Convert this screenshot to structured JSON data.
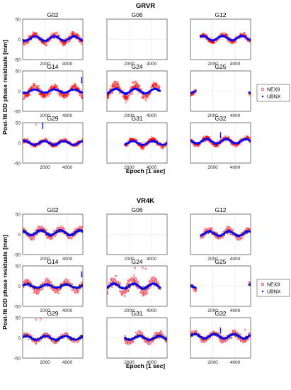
{
  "colors": {
    "nex9": "#ff0000",
    "ubnx": "#0000ff",
    "nex9_fill_vr4k": "#ffd6f5",
    "ubnx_dark_vr4k": "#1a1a2e",
    "axis": "#262626",
    "grid": "#e6e6e6"
  },
  "chart_data": [
    {
      "type": "scatter",
      "title": "GRVR",
      "ylabel": "Post-fit DD phase residuals [mm]",
      "xlabel": "Epoch [1 sec]",
      "legend": {
        "placement": "right",
        "entries": [
          "NEX9",
          "UBNX"
        ]
      },
      "grid": true,
      "xlim": [
        0,
        5400
      ],
      "ylim": [
        -50,
        50
      ],
      "xticks": [
        "2000",
        "4000"
      ],
      "yticks": [
        "-50",
        "0",
        "50"
      ],
      "panels": [
        {
          "name": "G02",
          "x_range": [
            0,
            5400
          ],
          "nex9_amp": 22,
          "ubnx_amp": 9,
          "offset": 2,
          "outliers": []
        },
        {
          "name": "G06",
          "x_range": [],
          "nex9_amp": 0,
          "ubnx_amp": 0,
          "offset": 0,
          "outliers": []
        },
        {
          "name": "G12",
          "x_range": [
            900,
            5400
          ],
          "nex9_amp": 18,
          "ubnx_amp": 9,
          "offset": 3,
          "outliers": []
        },
        {
          "name": "G14",
          "x_range": [
            0,
            5400
          ],
          "nex9_amp": 24,
          "ubnx_amp": 7,
          "offset": 0,
          "outliers": [
            [
              5300,
              33
            ]
          ]
        },
        {
          "name": "G24",
          "x_range": [
            0,
            4800
          ],
          "nex9_amp": 32,
          "ubnx_amp": 10,
          "offset": 0,
          "outliers": []
        },
        {
          "name": "G25",
          "x_range": [
            0,
            500
          ],
          "x_range2": [
            5250,
            5400
          ],
          "nex9_amp": 16,
          "ubnx_amp": 7,
          "offset": 0,
          "outliers": []
        },
        {
          "name": "G29",
          "x_range": [
            0,
            5400
          ],
          "nex9_amp": 13,
          "ubnx_amp": 8,
          "offset": 0,
          "outliers": [
            [
              1200,
              45
            ],
            [
              1800,
              48
            ]
          ]
        },
        {
          "name": "G31",
          "x_range": [
            1600,
            5400
          ],
          "nex9_amp": 19,
          "ubnx_amp": 8,
          "offset": 0,
          "outliers": []
        },
        {
          "name": "G32",
          "x_range": [
            0,
            5400
          ],
          "nex9_amp": 18,
          "ubnx_amp": 9,
          "offset": 4,
          "outliers": [
            [
              2700,
              25
            ]
          ]
        }
      ]
    },
    {
      "type": "scatter",
      "title": "VR4K",
      "ylabel": "Post-fit DD phase residuals [mm]",
      "xlabel": "Epoch [1 sec]",
      "legend": {
        "placement": "right",
        "entries": [
          "NEX9",
          "UBNX"
        ]
      },
      "grid": true,
      "xlim": [
        0,
        5400
      ],
      "ylim": [
        -50,
        50
      ],
      "xticks": [
        "2000",
        "4000"
      ],
      "yticks": [
        "-50",
        "0",
        "50"
      ],
      "panels": [
        {
          "name": "G02",
          "x_range": [
            0,
            5400
          ],
          "nex9_amp": 22,
          "ubnx_amp": 10,
          "offset": 4,
          "outliers": []
        },
        {
          "name": "G06",
          "x_range": [],
          "nex9_amp": 0,
          "ubnx_amp": 0,
          "offset": 0,
          "outliers": []
        },
        {
          "name": "G12",
          "x_range": [
            900,
            5400
          ],
          "nex9_amp": 20,
          "ubnx_amp": 9,
          "offset": 2,
          "outliers": []
        },
        {
          "name": "G14",
          "x_range": [
            0,
            5400
          ],
          "nex9_amp": 24,
          "ubnx_amp": 7,
          "offset": 0,
          "outliers": [
            [
              5300,
              35
            ]
          ]
        },
        {
          "name": "G24",
          "x_range": [
            0,
            4800
          ],
          "nex9_amp": 34,
          "ubnx_amp": 10,
          "offset": 0,
          "outliers": [
            [
              2500,
              45
            ],
            [
              3200,
              46
            ],
            [
              3500,
              43
            ]
          ]
        },
        {
          "name": "G25",
          "x_range": [
            0,
            500
          ],
          "x_range2": [
            5250,
            5400
          ],
          "nex9_amp": 16,
          "ubnx_amp": 7,
          "offset": 0,
          "outliers": []
        },
        {
          "name": "G29",
          "x_range": [
            0,
            5400
          ],
          "nex9_amp": 16,
          "ubnx_amp": 8,
          "offset": 0,
          "outliers": [
            [
              1200,
              45
            ],
            [
              1600,
              46
            ]
          ]
        },
        {
          "name": "G31",
          "x_range": [
            1600,
            5400
          ],
          "nex9_amp": 22,
          "ubnx_amp": 8,
          "offset": 0,
          "outliers": []
        },
        {
          "name": "G32",
          "x_range": [
            0,
            5400
          ],
          "nex9_amp": 22,
          "ubnx_amp": 9,
          "offset": 4,
          "outliers": [
            [
              2700,
              24
            ],
            [
              4900,
              20
            ]
          ]
        }
      ]
    }
  ]
}
